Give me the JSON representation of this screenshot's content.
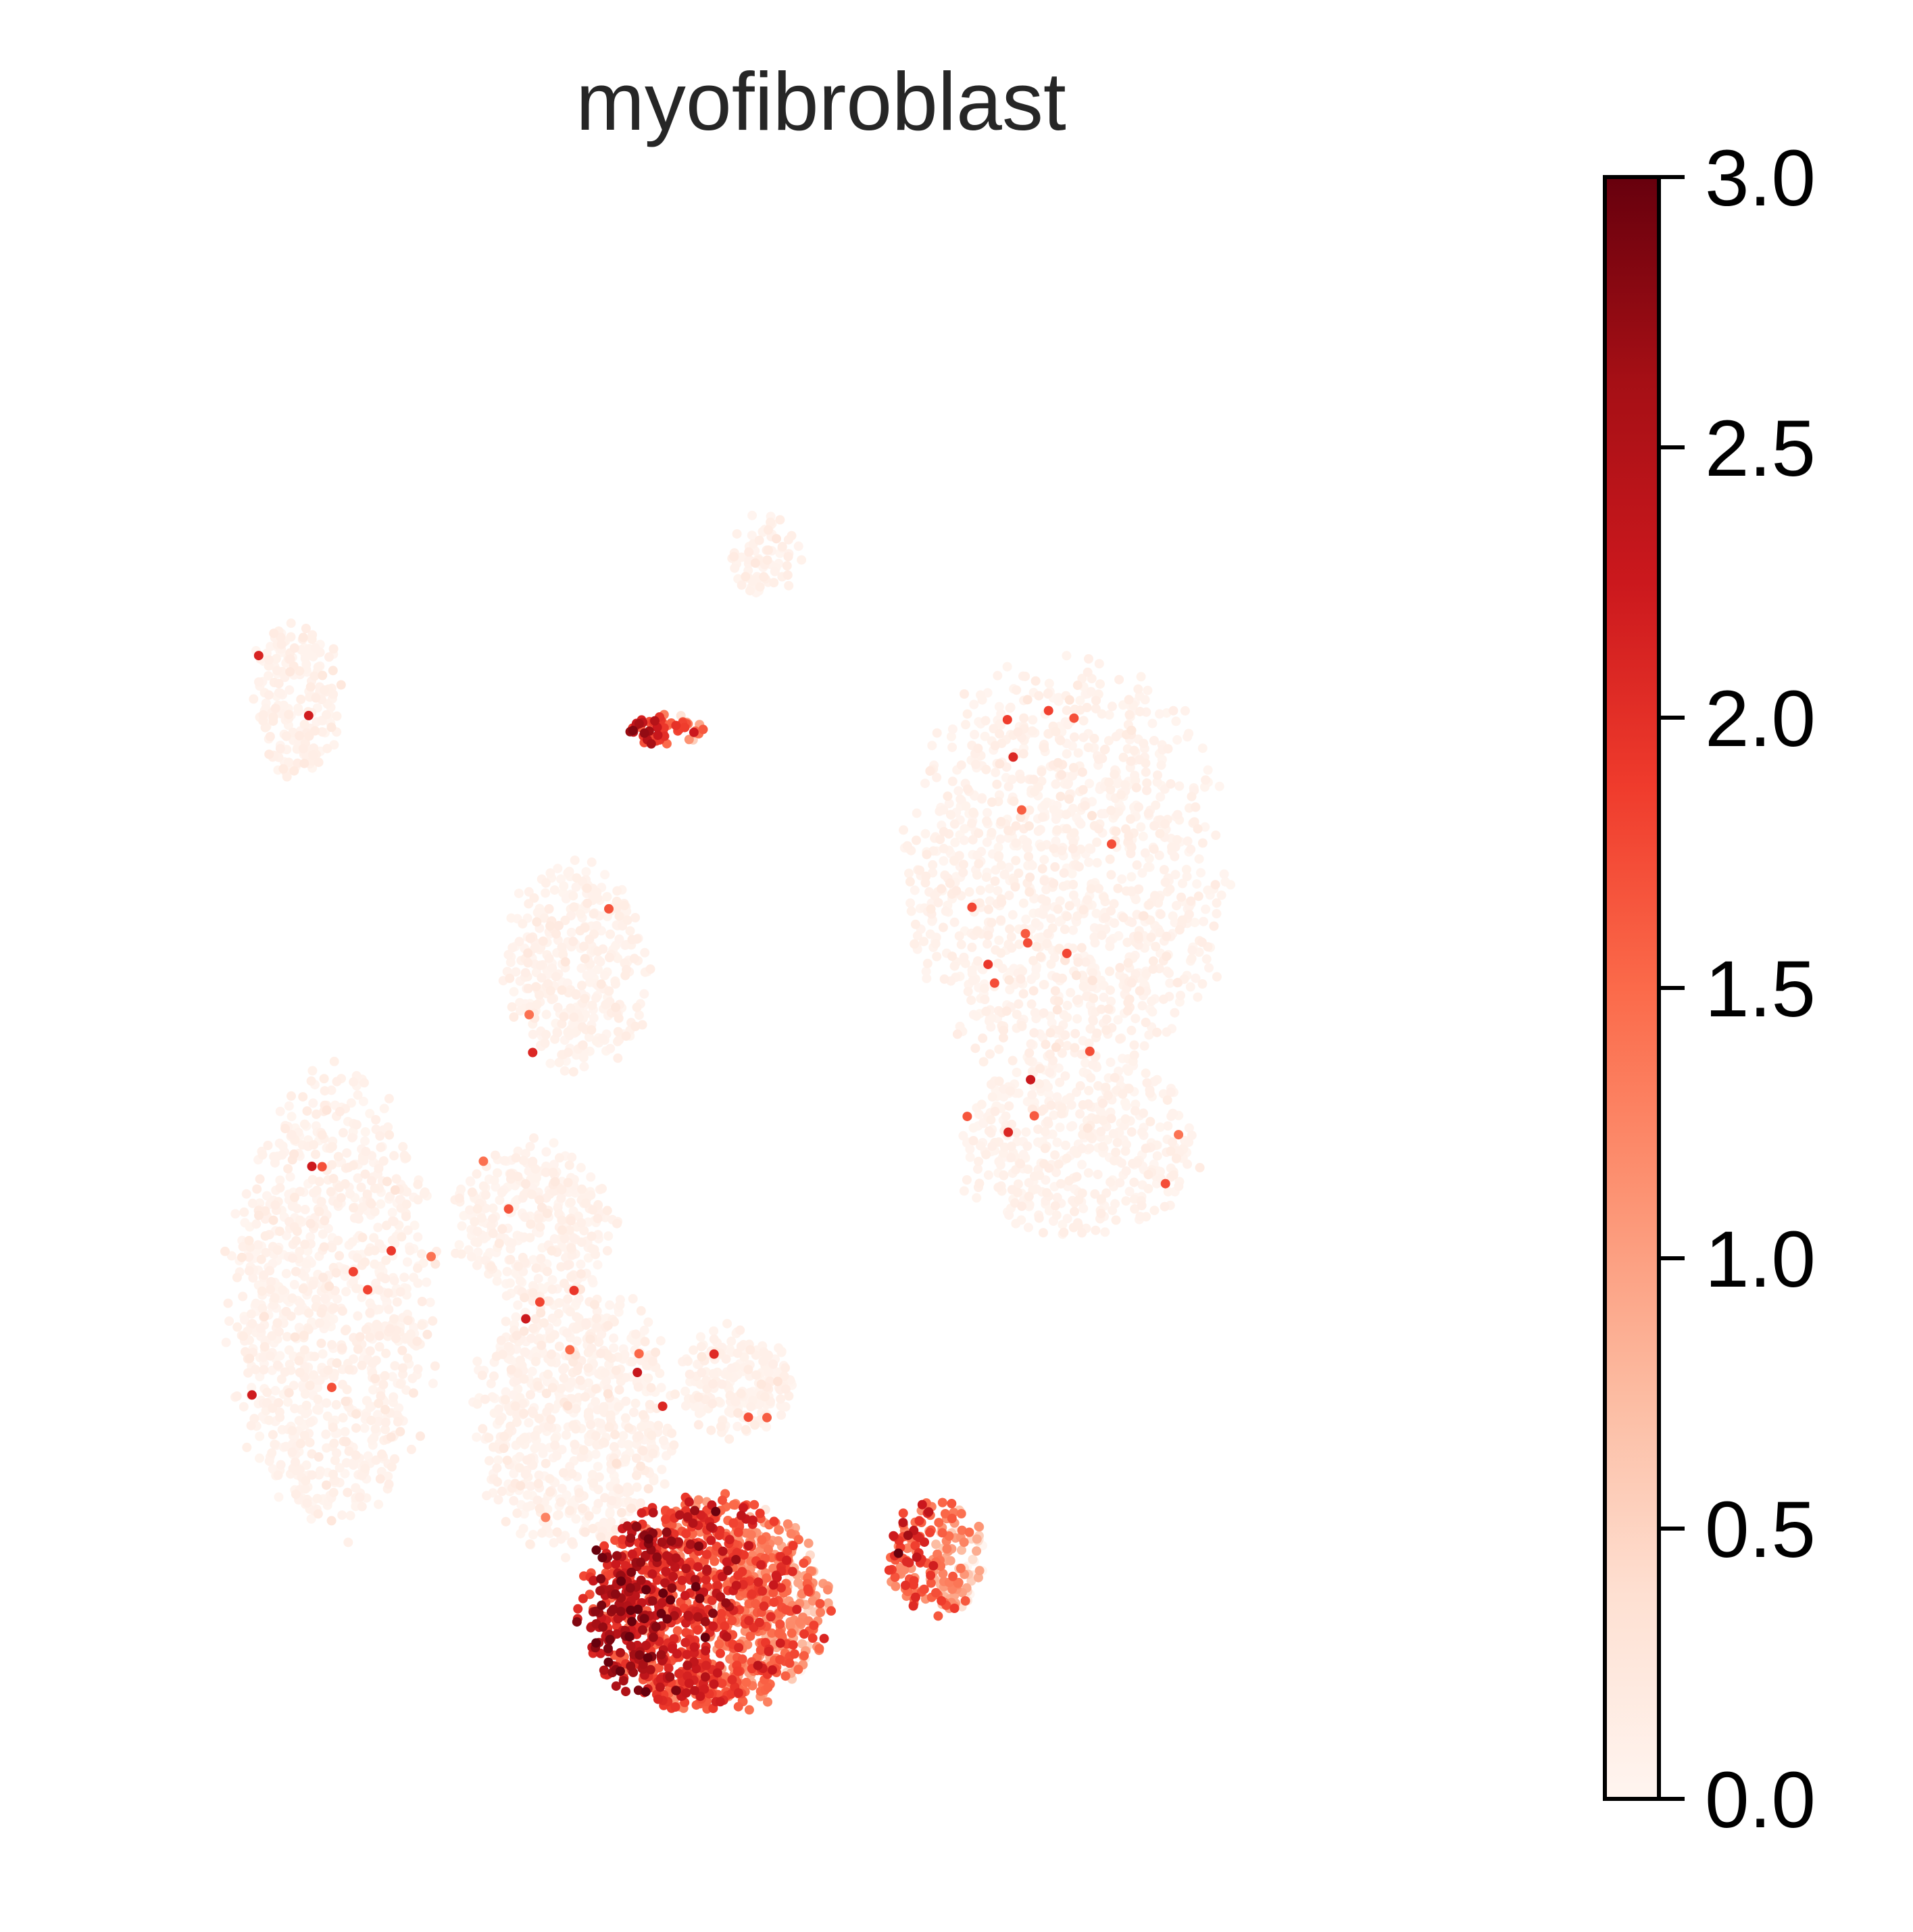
{
  "chart_data": {
    "type": "scatter",
    "title": "myofibroblast",
    "xlabel": "",
    "ylabel": "",
    "grid": false,
    "axes_visible": false,
    "colormap": {
      "name": "Reds",
      "stops": [
        "#fff5f0",
        "#fee0d2",
        "#fcbba1",
        "#fc9272",
        "#fb6a4a",
        "#ef3b2c",
        "#cb181d",
        "#a50f15",
        "#67000d"
      ]
    },
    "colorbar": {
      "range": [
        0.0,
        3.0
      ],
      "ticks": [
        0.0,
        0.5,
        1.0,
        1.5,
        2.0,
        2.5,
        3.0
      ],
      "tick_labels": [
        "0.0",
        "0.5",
        "1.0",
        "1.5",
        "2.0",
        "2.5",
        "3.0"
      ],
      "placement": "right"
    },
    "point_cloud_note_free": true,
    "clusters": [
      {
        "cx": 0.33,
        "cy": 0.76,
        "rx": 0.07,
        "ry": 0.085,
        "n": 700,
        "mean": 0.05
      },
      {
        "cx": 0.3,
        "cy": 0.64,
        "rx": 0.055,
        "ry": 0.05,
        "n": 350,
        "mean": 0.05
      },
      {
        "cx": 0.44,
        "cy": 0.74,
        "rx": 0.04,
        "ry": 0.035,
        "n": 220,
        "mean": 0.04
      },
      {
        "cx": 0.135,
        "cy": 0.31,
        "rx": 0.03,
        "ry": 0.05,
        "n": 220,
        "mean": 0.02
      },
      {
        "cx": 0.33,
        "cy": 0.48,
        "rx": 0.05,
        "ry": 0.065,
        "n": 380,
        "mean": 0.05
      },
      {
        "cx": 0.46,
        "cy": 0.22,
        "rx": 0.025,
        "ry": 0.025,
        "n": 80,
        "mean": 0.02
      },
      {
        "cx": 0.67,
        "cy": 0.42,
        "rx": 0.11,
        "ry": 0.13,
        "n": 1200,
        "mean": 0.05
      },
      {
        "cx": 0.68,
        "cy": 0.59,
        "rx": 0.085,
        "ry": 0.055,
        "n": 450,
        "mean": 0.05
      },
      {
        "cx": 0.16,
        "cy": 0.69,
        "rx": 0.07,
        "ry": 0.14,
        "n": 1000,
        "mean": 0.05
      },
      {
        "cx": 0.42,
        "cy": 0.88,
        "rx": 0.085,
        "ry": 0.065,
        "n": 1300,
        "mean": 1.6
      },
      {
        "cx": 0.58,
        "cy": 0.85,
        "rx": 0.035,
        "ry": 0.035,
        "n": 200,
        "mean": 1.1
      },
      {
        "cx": 0.39,
        "cy": 0.33,
        "rx": 0.03,
        "ry": 0.01,
        "n": 60,
        "mean": 1.6
      }
    ]
  }
}
